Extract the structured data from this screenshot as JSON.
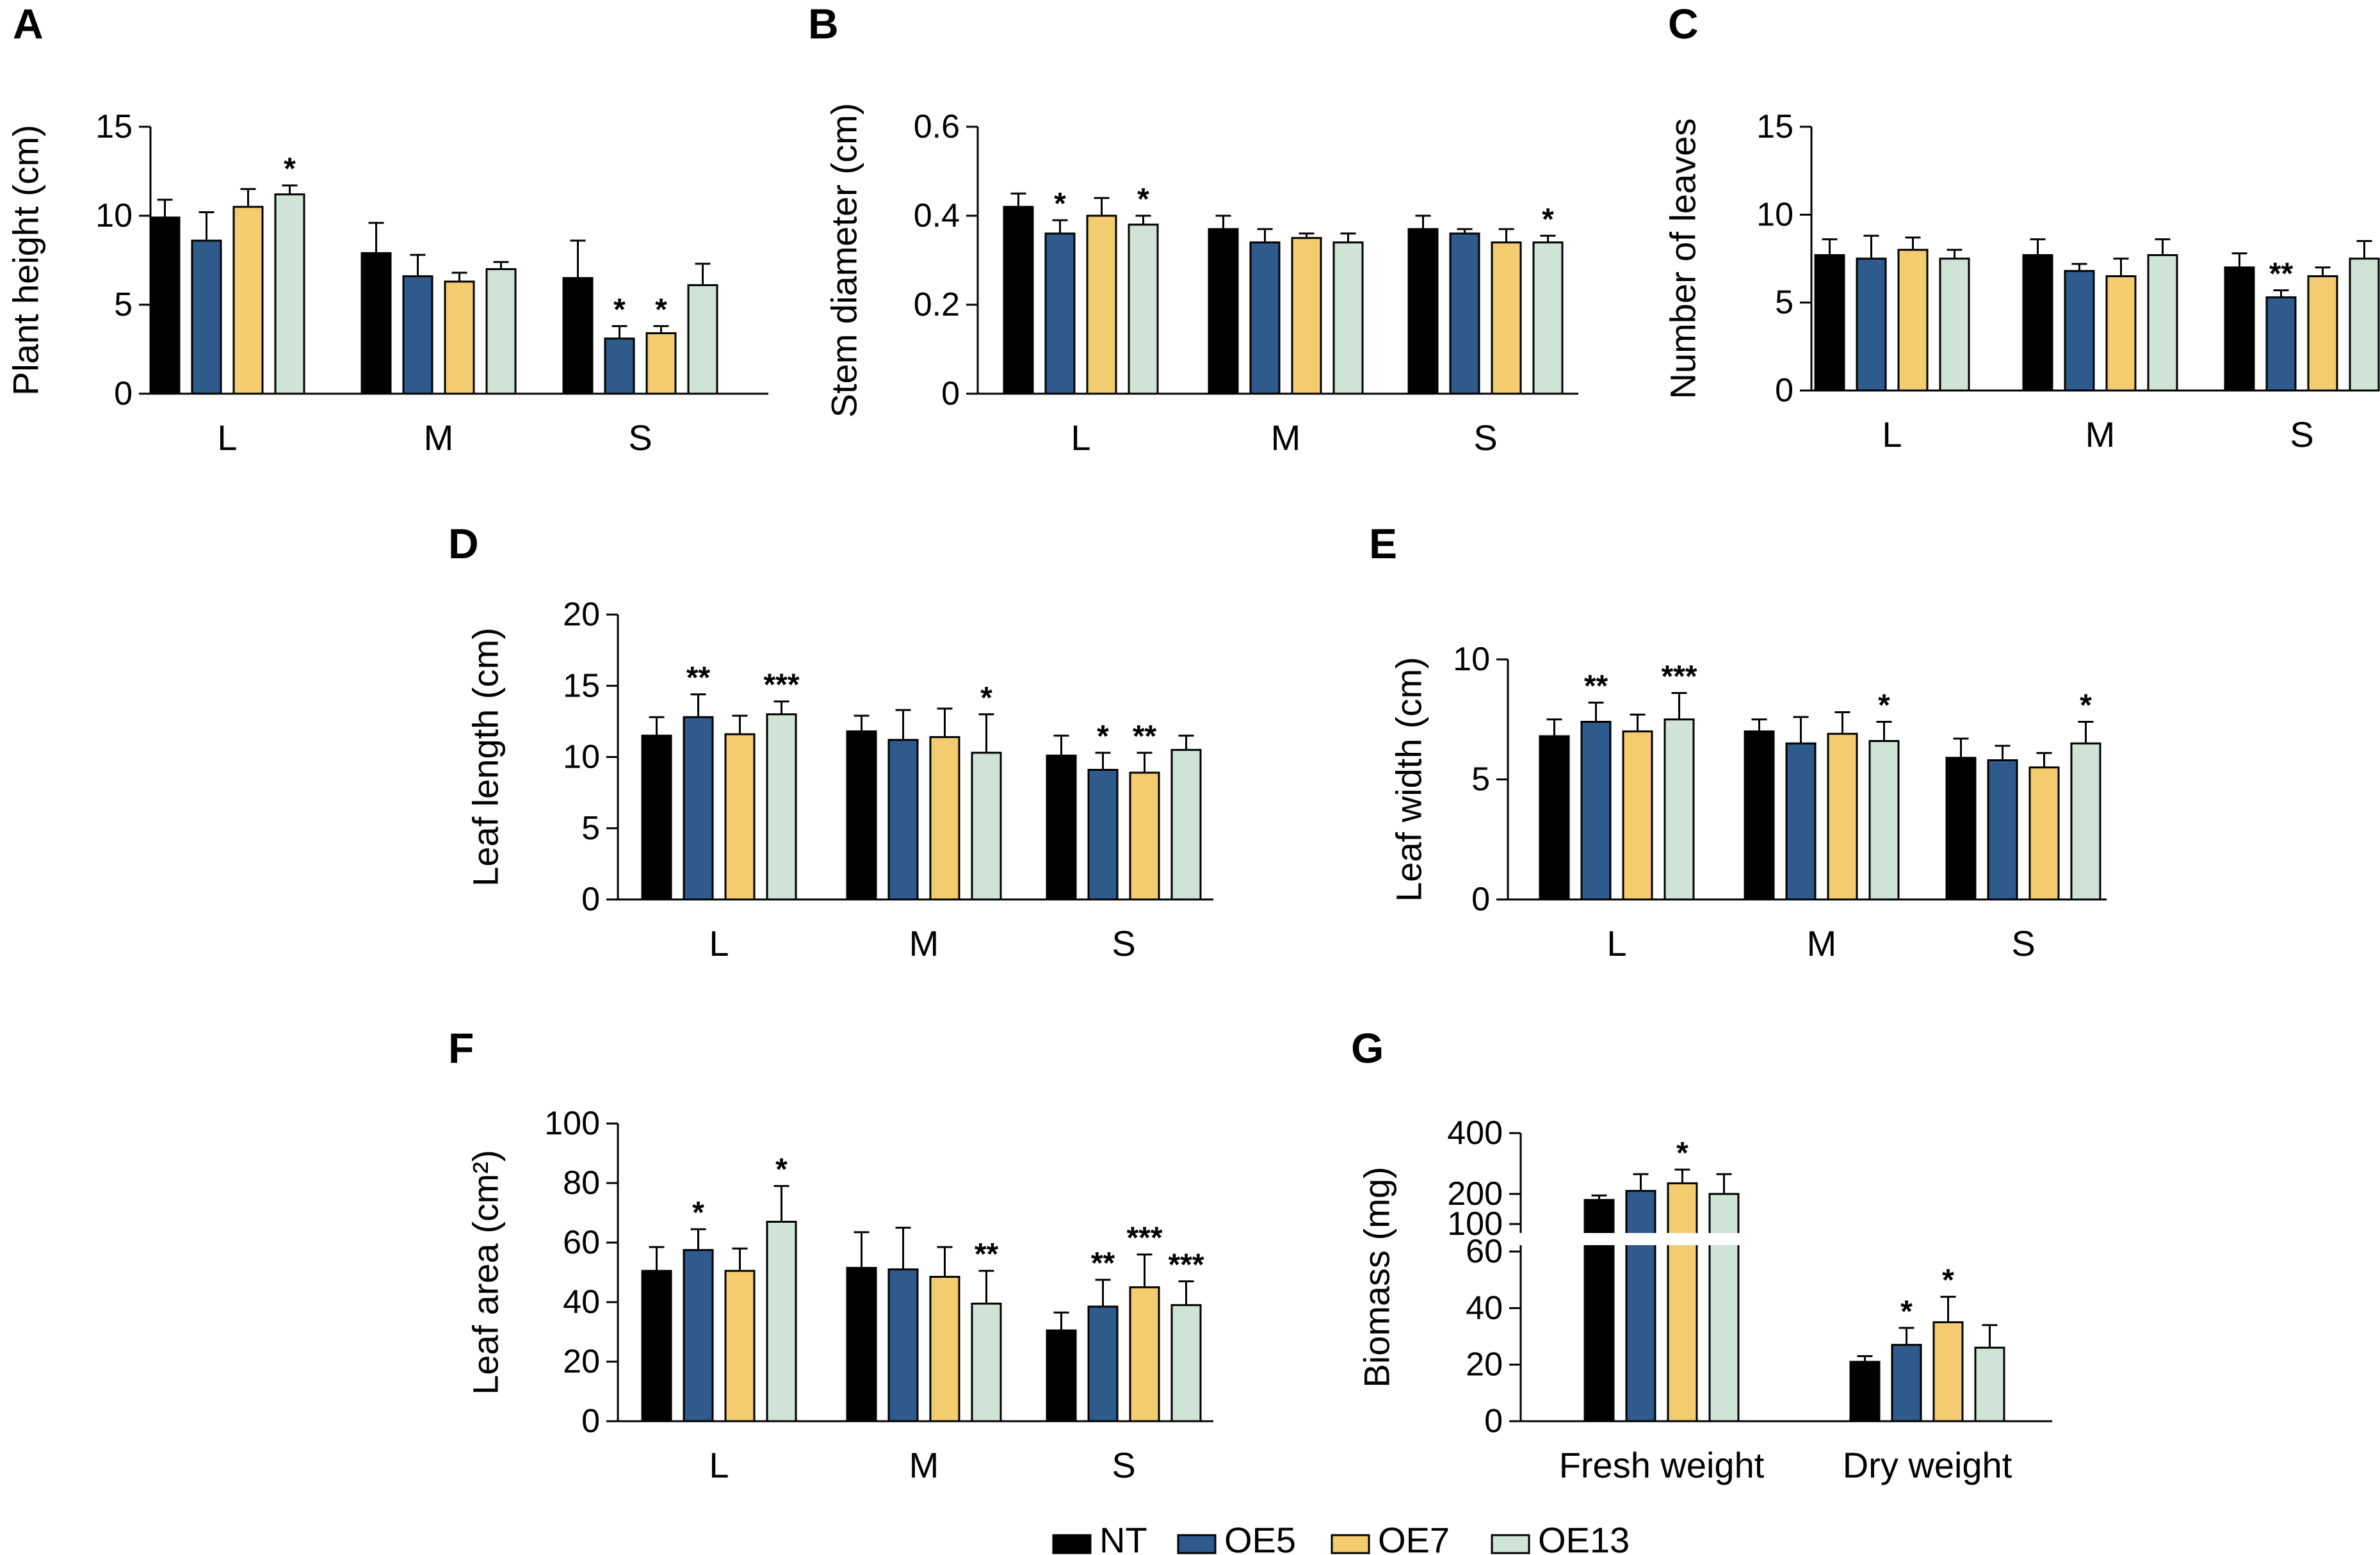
{
  "colors": {
    "NT": "#000000",
    "OE5": "#2e5a8c",
    "OE7": "#f2cc6f",
    "OE13": "#cfe3d6"
  },
  "legend": [
    {
      "name": "NT",
      "color": "#000000"
    },
    {
      "name": "OE5",
      "color": "#2e5a8c"
    },
    {
      "name": "OE7",
      "color": "#f2cc6f"
    },
    {
      "name": "OE13",
      "color": "#cfe3d6"
    }
  ],
  "chart_data": [
    {
      "panel": "A",
      "type": "bar",
      "ylabel": "Plant height (cm)",
      "ylim": [
        0,
        15
      ],
      "yticks": [
        0,
        5,
        10,
        15
      ],
      "categories": [
        "L",
        "M",
        "S"
      ],
      "series": [
        {
          "name": "NT",
          "values": [
            9.9,
            7.9,
            6.5
          ],
          "errors": [
            1.0,
            1.7,
            2.1
          ],
          "sig": [
            "",
            "",
            ""
          ]
        },
        {
          "name": "OE5",
          "values": [
            8.6,
            6.6,
            3.1
          ],
          "errors": [
            1.6,
            1.2,
            0.7
          ],
          "sig": [
            "",
            "",
            "*"
          ]
        },
        {
          "name": "OE7",
          "values": [
            10.5,
            6.3,
            3.4
          ],
          "errors": [
            1.0,
            0.5,
            0.4
          ],
          "sig": [
            "",
            "",
            "*"
          ]
        },
        {
          "name": "OE13",
          "values": [
            11.2,
            7.0,
            6.1
          ],
          "errors": [
            0.5,
            0.4,
            1.2
          ],
          "sig": [
            "*",
            "",
            ""
          ]
        }
      ]
    },
    {
      "panel": "B",
      "type": "bar",
      "ylabel": "Stem diameter (cm)",
      "ylim": [
        0,
        0.6
      ],
      "yticks": [
        0,
        0.2,
        0.4,
        0.6
      ],
      "categories": [
        "L",
        "M",
        "S"
      ],
      "series": [
        {
          "name": "NT",
          "values": [
            0.42,
            0.37,
            0.37
          ],
          "errors": [
            0.03,
            0.03,
            0.03
          ],
          "sig": [
            "",
            "",
            ""
          ]
        },
        {
          "name": "OE5",
          "values": [
            0.36,
            0.34,
            0.36
          ],
          "errors": [
            0.03,
            0.03,
            0.01
          ],
          "sig": [
            "*",
            "",
            ""
          ]
        },
        {
          "name": "OE7",
          "values": [
            0.4,
            0.35,
            0.34
          ],
          "errors": [
            0.04,
            0.01,
            0.03
          ],
          "sig": [
            "",
            "",
            ""
          ]
        },
        {
          "name": "OE13",
          "values": [
            0.38,
            0.34,
            0.34
          ],
          "errors": [
            0.02,
            0.02,
            0.015
          ],
          "sig": [
            "*",
            "",
            "*"
          ]
        }
      ]
    },
    {
      "panel": "C",
      "type": "bar",
      "ylabel": "Number of leaves",
      "ylim": [
        0,
        15
      ],
      "yticks": [
        0,
        5,
        10,
        15
      ],
      "categories": [
        "L",
        "M",
        "S"
      ],
      "series": [
        {
          "name": "NT",
          "values": [
            7.7,
            7.7,
            7.0
          ],
          "errors": [
            0.9,
            0.9,
            0.8
          ],
          "sig": [
            "",
            "",
            ""
          ]
        },
        {
          "name": "OE5",
          "values": [
            7.5,
            6.8,
            5.3
          ],
          "errors": [
            1.3,
            0.4,
            0.4
          ],
          "sig": [
            "",
            "",
            "**"
          ]
        },
        {
          "name": "OE7",
          "values": [
            8.0,
            6.5,
            6.5
          ],
          "errors": [
            0.7,
            1.0,
            0.5
          ],
          "sig": [
            "",
            "",
            ""
          ]
        },
        {
          "name": "OE13",
          "values": [
            7.5,
            7.7,
            7.5
          ],
          "errors": [
            0.5,
            0.9,
            1.0
          ],
          "sig": [
            "",
            "",
            ""
          ]
        }
      ]
    },
    {
      "panel": "D",
      "type": "bar",
      "ylabel": "Leaf length (cm)",
      "ylim": [
        0,
        20
      ],
      "yticks": [
        0,
        5,
        10,
        15,
        20
      ],
      "categories": [
        "L",
        "M",
        "S"
      ],
      "series": [
        {
          "name": "NT",
          "values": [
            11.5,
            11.8,
            10.1
          ],
          "errors": [
            1.3,
            1.1,
            1.4
          ],
          "sig": [
            "",
            "",
            ""
          ]
        },
        {
          "name": "OE5",
          "values": [
            12.8,
            11.2,
            9.1
          ],
          "errors": [
            1.6,
            2.1,
            1.2
          ],
          "sig": [
            "**",
            "",
            "*"
          ]
        },
        {
          "name": "OE7",
          "values": [
            11.6,
            11.4,
            8.9
          ],
          "errors": [
            1.3,
            2.0,
            1.4
          ],
          "sig": [
            "",
            "",
            "**"
          ]
        },
        {
          "name": "OE13",
          "values": [
            13.0,
            10.3,
            10.5
          ],
          "errors": [
            0.9,
            2.7,
            1.0
          ],
          "sig": [
            "***",
            "*",
            ""
          ]
        }
      ]
    },
    {
      "panel": "E",
      "type": "bar",
      "ylabel": "Leaf width (cm)",
      "ylim": [
        0,
        10
      ],
      "yticks": [
        0,
        5,
        10
      ],
      "categories": [
        "L",
        "M",
        "S"
      ],
      "series": [
        {
          "name": "NT",
          "values": [
            6.8,
            7.0,
            5.9
          ],
          "errors": [
            0.7,
            0.5,
            0.8
          ],
          "sig": [
            "",
            "",
            ""
          ]
        },
        {
          "name": "OE5",
          "values": [
            7.4,
            6.5,
            5.8
          ],
          "errors": [
            0.8,
            1.1,
            0.6
          ],
          "sig": [
            "**",
            "",
            ""
          ]
        },
        {
          "name": "OE7",
          "values": [
            7.0,
            6.9,
            5.5
          ],
          "errors": [
            0.7,
            0.9,
            0.6
          ],
          "sig": [
            "",
            "",
            ""
          ]
        },
        {
          "name": "OE13",
          "values": [
            7.5,
            6.6,
            6.5
          ],
          "errors": [
            1.1,
            0.8,
            0.9
          ],
          "sig": [
            "***",
            "*",
            "*"
          ]
        }
      ]
    },
    {
      "panel": "F",
      "type": "bar",
      "ylabel": "Leaf area (cm²)",
      "ylim": [
        0,
        100
      ],
      "yticks": [
        0,
        20,
        40,
        60,
        80,
        100
      ],
      "categories": [
        "L",
        "M",
        "S"
      ],
      "series": [
        {
          "name": "NT",
          "values": [
            50.5,
            51.5,
            30.5
          ],
          "errors": [
            8,
            12,
            6
          ],
          "sig": [
            "",
            "",
            ""
          ]
        },
        {
          "name": "OE5",
          "values": [
            57.5,
            51.0,
            38.5
          ],
          "errors": [
            7,
            14,
            9
          ],
          "sig": [
            "*",
            "",
            "**"
          ]
        },
        {
          "name": "OE7",
          "values": [
            50.5,
            48.5,
            45.0
          ],
          "errors": [
            7.5,
            10,
            11
          ],
          "sig": [
            "",
            "",
            "***"
          ]
        },
        {
          "name": "OE13",
          "values": [
            67.0,
            39.5,
            39.0
          ],
          "errors": [
            12,
            11,
            8
          ],
          "sig": [
            "*",
            "**",
            "***"
          ]
        }
      ]
    },
    {
      "panel": "G",
      "type": "bar",
      "ylabel": "Biomass (mg)",
      "axis_break": true,
      "yticks": [
        0,
        20,
        40,
        60,
        100,
        200,
        400
      ],
      "categories": [
        "Fresh weight",
        "Dry weight"
      ],
      "series": [
        {
          "name": "NT",
          "values": [
            180,
            21
          ],
          "errors": [
            15,
            2
          ],
          "sig": [
            "",
            ""
          ]
        },
        {
          "name": "OE5",
          "values": [
            210,
            27
          ],
          "errors": [
            55,
            6
          ],
          "sig": [
            "",
            "*"
          ]
        },
        {
          "name": "OE7",
          "values": [
            235,
            35
          ],
          "errors": [
            45,
            9
          ],
          "sig": [
            "*",
            "*"
          ]
        },
        {
          "name": "OE13",
          "values": [
            200,
            26
          ],
          "errors": [
            65,
            8
          ],
          "sig": [
            "",
            ""
          ]
        }
      ]
    }
  ]
}
